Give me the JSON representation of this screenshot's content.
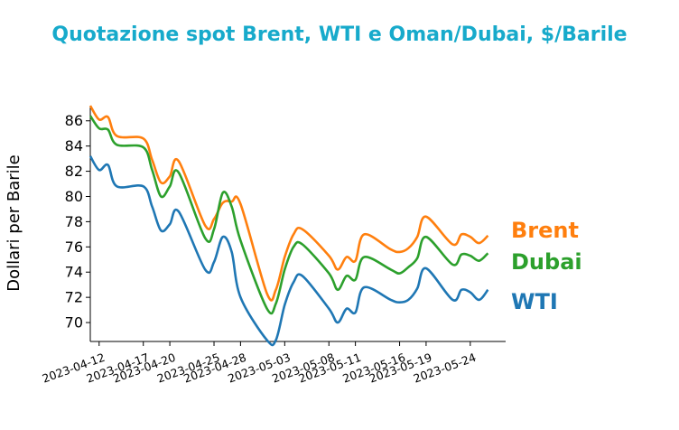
{
  "title": "Quotazione spot Brent, WTI e Oman/Dubai, $/Barile",
  "chart_data": {
    "type": "line",
    "title": "Quotazione spot Brent, WTI e Oman/Dubai, $/Barile",
    "xlabel": "",
    "ylabel": "Dollari per Barile",
    "ylim": [
      68.5,
      87.2
    ],
    "xlim": [
      "2023-04-11",
      "2023-05-28"
    ],
    "yticks": [
      "70",
      "72",
      "74",
      "76",
      "78",
      "80",
      "82",
      "84",
      "86"
    ],
    "xticks": [
      "2023-04-12",
      "2023-04-17",
      "2023-04-20",
      "2023-04-25",
      "2023-04-28",
      "2023-05-03",
      "2023-05-08",
      "2023-05-11",
      "2023-05-16",
      "2023-05-19",
      "2023-05-24"
    ],
    "grid": false,
    "legend": "labels at line ends (right)",
    "x": [
      "2023-04-11",
      "2023-04-12",
      "2023-04-13",
      "2023-04-14",
      "2023-04-17",
      "2023-04-18",
      "2023-04-19",
      "2023-04-20",
      "2023-04-21",
      "2023-04-24",
      "2023-04-25",
      "2023-04-26",
      "2023-04-27",
      "2023-04-28",
      "2023-05-01",
      "2023-05-02",
      "2023-05-03",
      "2023-05-04",
      "2023-05-05",
      "2023-05-08",
      "2023-05-09",
      "2023-05-10",
      "2023-05-11",
      "2023-05-12",
      "2023-05-15",
      "2023-05-16",
      "2023-05-17",
      "2023-05-18",
      "2023-05-19",
      "2023-05-22",
      "2023-05-23",
      "2023-05-24",
      "2023-05-25",
      "2023-05-26"
    ],
    "series": [
      {
        "name": "Brent",
        "color": "#ff7f0e",
        "values": [
          87.2,
          86.1,
          86.3,
          84.8,
          84.6,
          82.9,
          81.1,
          81.6,
          82.8,
          77.7,
          78.2,
          79.5,
          79.6,
          79.4,
          72.3,
          72.6,
          75.2,
          77.0,
          77.4,
          75.3,
          74.2,
          75.2,
          74.9,
          77.0,
          75.8,
          75.6,
          75.9,
          76.8,
          78.4,
          76.2,
          77.0,
          76.8,
          76.3,
          76.9
        ]
      },
      {
        "name": "Dubai",
        "color": "#2ca02c",
        "values": [
          86.4,
          85.4,
          85.3,
          84.1,
          83.9,
          82.1,
          80.0,
          80.8,
          81.9,
          76.7,
          77.4,
          80.3,
          79.2,
          76.5,
          71.1,
          71.5,
          74.2,
          76.0,
          76.2,
          73.9,
          72.6,
          73.7,
          73.4,
          75.2,
          74.2,
          73.9,
          74.4,
          75.1,
          76.8,
          74.6,
          75.4,
          75.3,
          74.9,
          75.5
        ]
      },
      {
        "name": "WTI",
        "color": "#1f77b4",
        "values": [
          83.2,
          82.1,
          82.5,
          80.8,
          80.8,
          79.2,
          77.3,
          77.8,
          78.8,
          74.2,
          74.8,
          76.8,
          75.6,
          72.0,
          68.6,
          68.6,
          71.4,
          73.2,
          73.7,
          71.1,
          70.0,
          71.1,
          70.8,
          72.8,
          71.8,
          71.6,
          71.8,
          72.7,
          74.3,
          71.8,
          72.6,
          72.4,
          71.8,
          72.6
        ]
      }
    ]
  }
}
